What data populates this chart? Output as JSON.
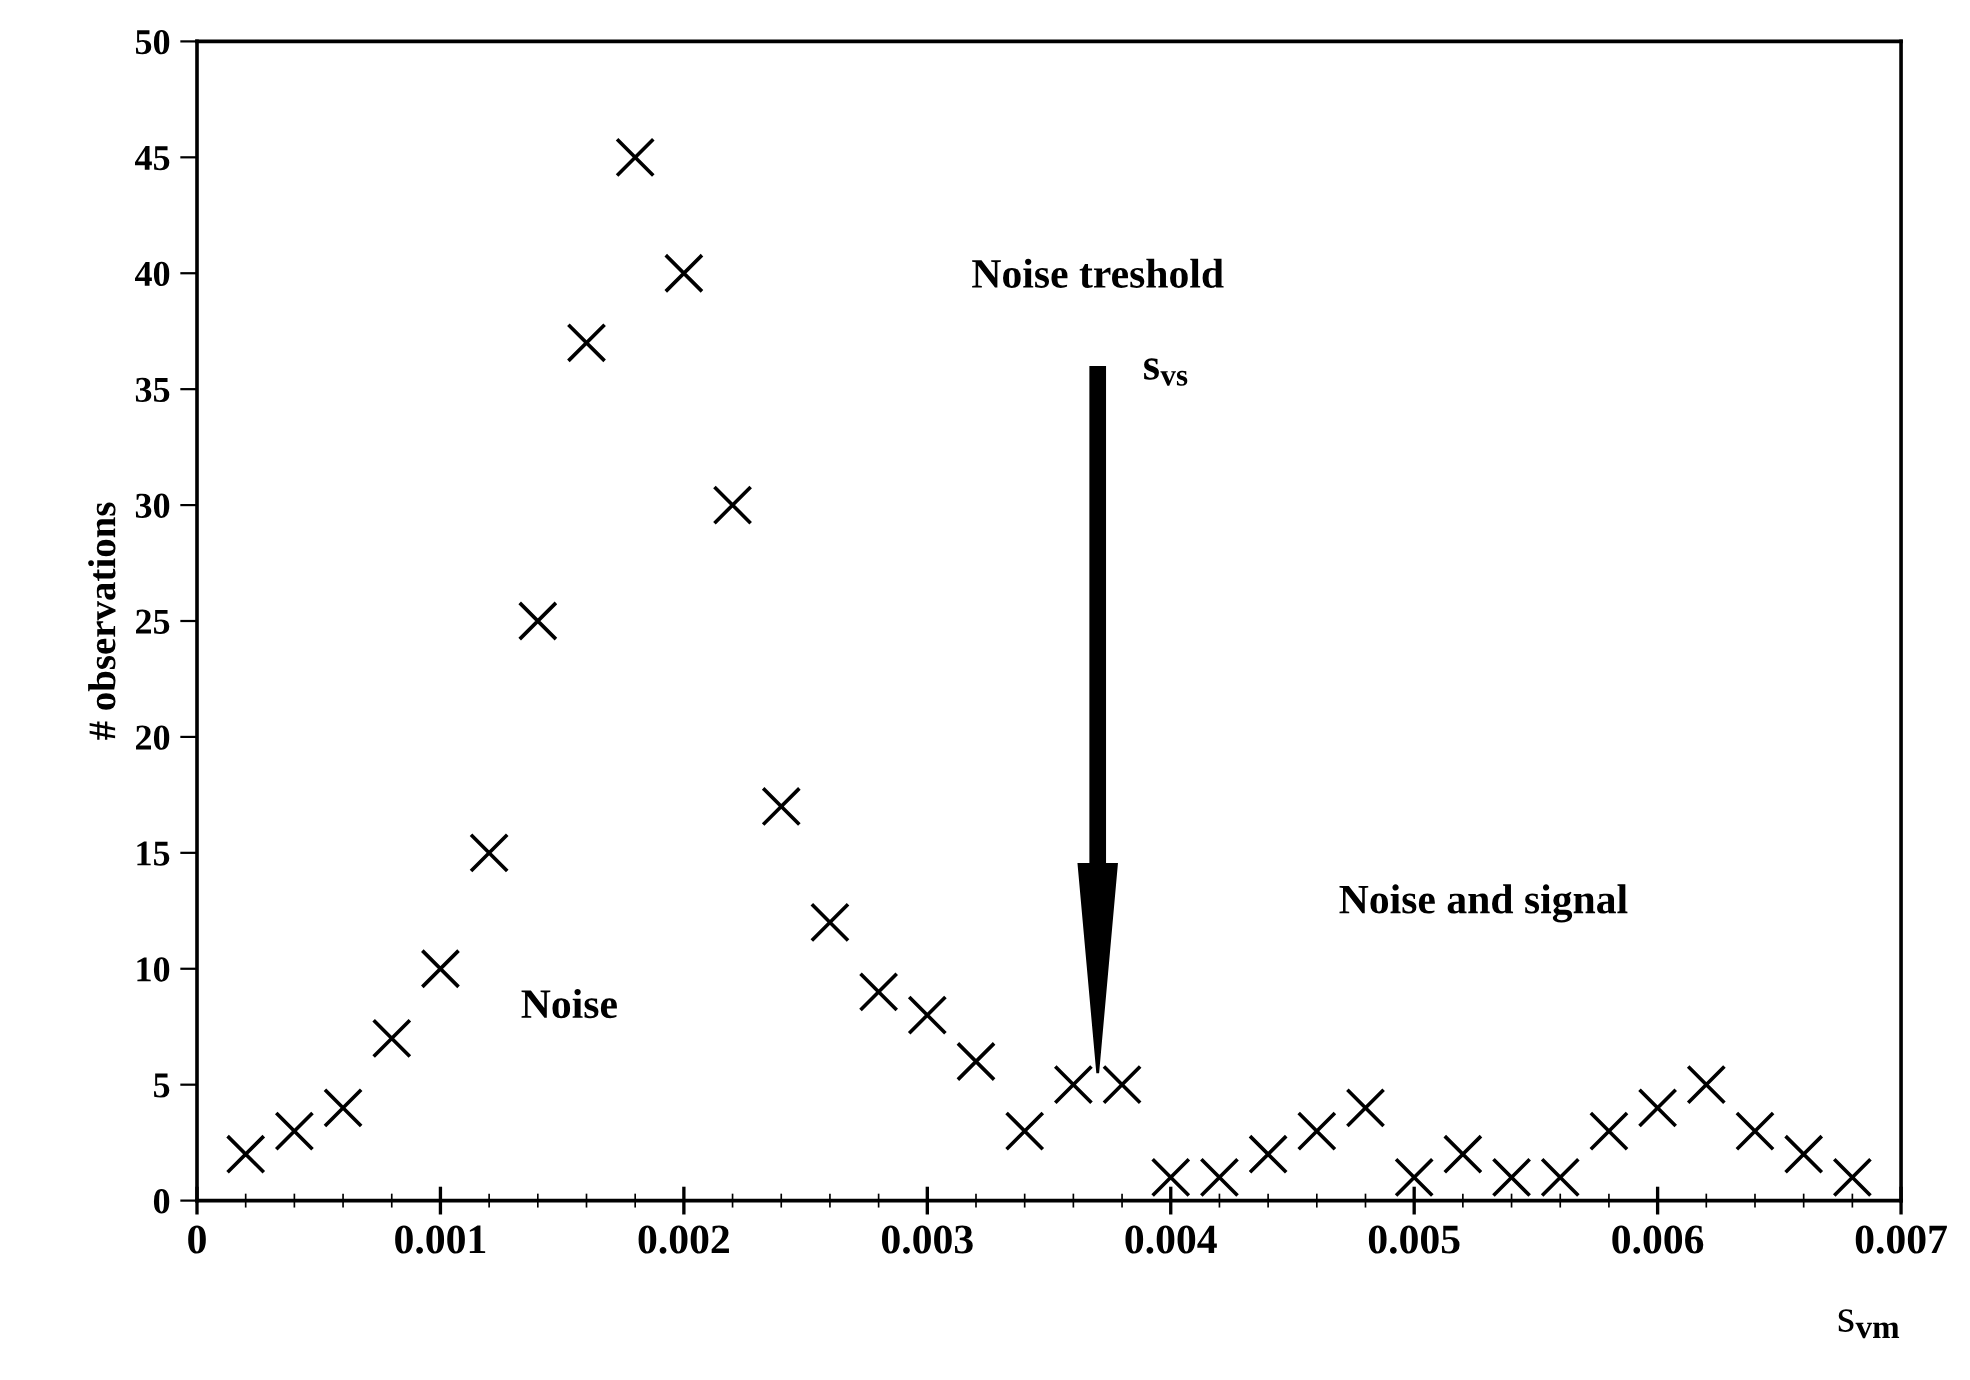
{
  "chart_data": {
    "type": "scatter",
    "xlabel": "s$_{vm}$",
    "ylabel": "# observations",
    "marker": "cross",
    "grid": false,
    "legend": false,
    "xlim": [
      0,
      0.007
    ],
    "xticks": [
      {
        "value": 0,
        "label": "0"
      },
      0.001,
      0.002,
      0.003,
      0.004,
      0.005,
      0.006,
      0.007
    ],
    "ylim": [
      0,
      50
    ],
    "yticks": [
      0,
      5,
      10,
      15,
      20,
      25,
      30,
      35,
      40,
      45,
      50
    ],
    "series": [
      {
        "color": "#000000",
        "x": [
          0.0002,
          0.0004,
          0.0006,
          0.0008,
          0.001,
          0.0012,
          0.0014,
          0.0016,
          0.0018,
          0.002,
          0.0022,
          0.0024,
          0.0026,
          0.0028,
          0.003,
          0.0032,
          0.0034,
          0.0036,
          0.0038,
          0.004,
          0.0042,
          0.0044,
          0.0046,
          0.0048,
          0.005,
          0.0052,
          0.0054,
          0.0056,
          0.0058,
          0.006,
          0.0062,
          0.0064,
          0.0066,
          0.0068
        ],
        "values": [
          2,
          3,
          4,
          7,
          10,
          15,
          25,
          37,
          45,
          40,
          30,
          17,
          12,
          9,
          8,
          6,
          3,
          5,
          5,
          1,
          1,
          2,
          3,
          4,
          1,
          2,
          1,
          1,
          3,
          4,
          5,
          3,
          2,
          1
        ]
      }
    ],
    "ref_lines": [
      {
        "axis": "x",
        "value": 0.0037,
        "label": "Noise treshold",
        "color": "#000000"
      }
    ],
    "annotations": [
      "s$_{vs}$",
      "Noise",
      "Noise and signal"
    ]
  }
}
